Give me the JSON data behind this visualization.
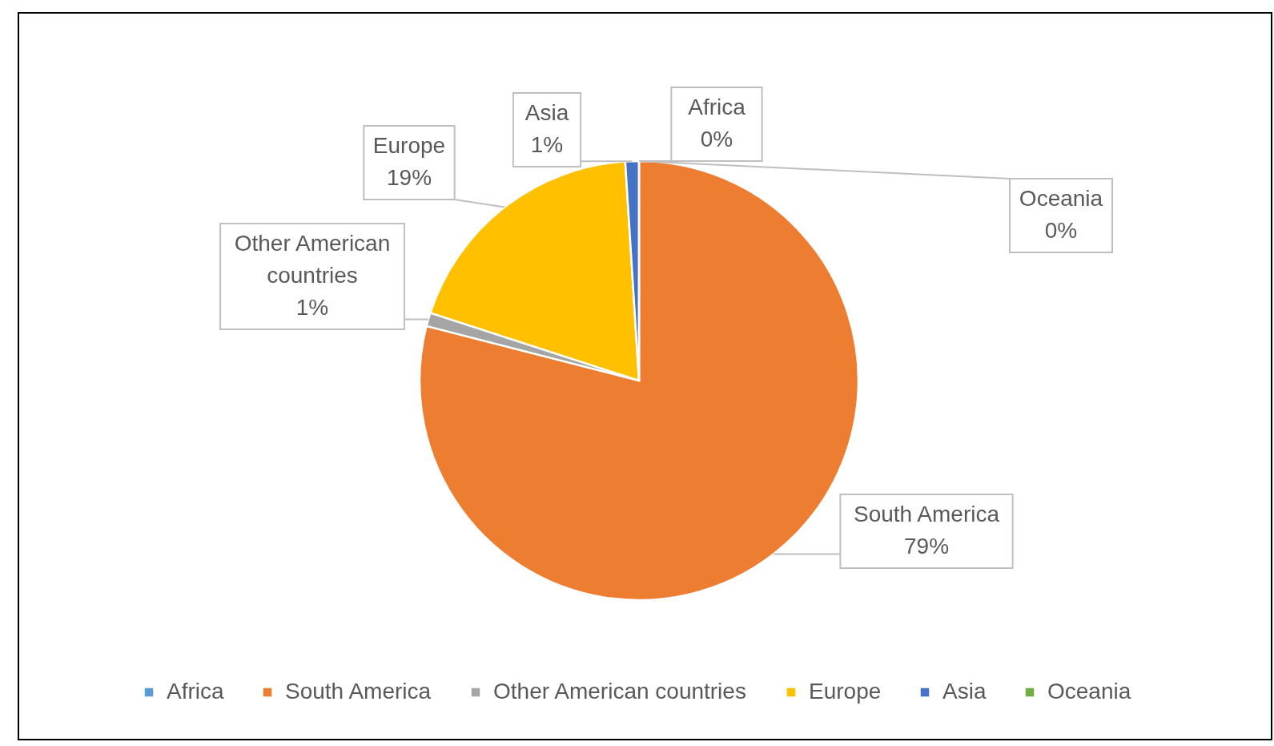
{
  "chart_data": {
    "type": "pie",
    "categories": [
      "Africa",
      "South America",
      "Other American countries",
      "Europe",
      "Asia",
      "Oceania"
    ],
    "values": [
      0,
      79,
      1,
      19,
      1,
      0
    ],
    "colors": [
      "#5b9bd5",
      "#ed7d31",
      "#a5a5a5",
      "#ffc000",
      "#4472c4",
      "#70ad47"
    ],
    "value_labels": [
      "0%",
      "79%",
      "1%",
      "19%",
      "1%",
      "0%"
    ],
    "legend": "bottom"
  }
}
